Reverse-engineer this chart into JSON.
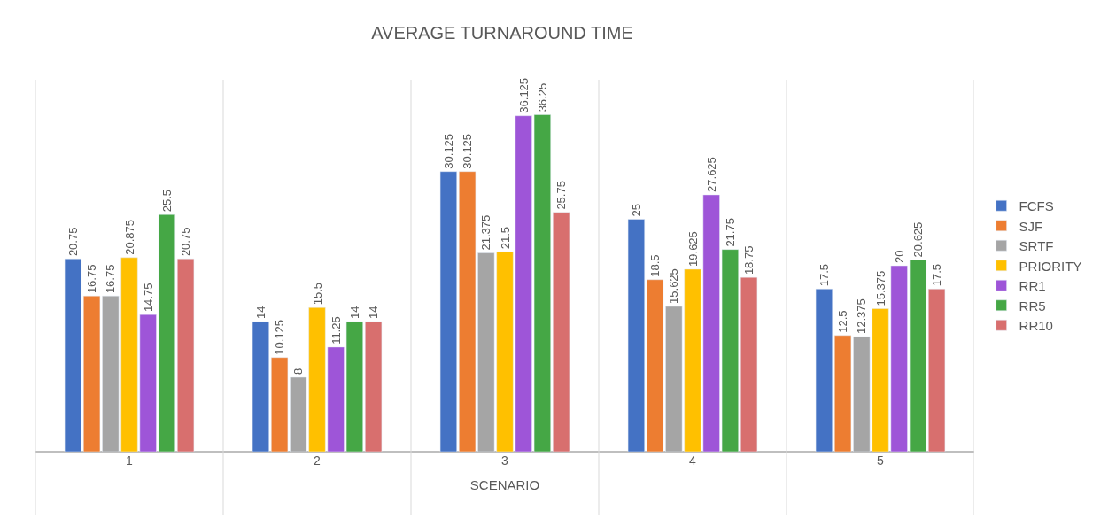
{
  "chart_data": {
    "type": "bar",
    "title": "AVERAGE TURNAROUND TIME",
    "xlabel": "SCENARIO",
    "categories": [
      "1",
      "2",
      "3",
      "4",
      "5"
    ],
    "series": [
      {
        "name": "FCFS",
        "color": "#4472c4",
        "values": [
          20.75,
          14,
          30.125,
          25,
          17.5
        ]
      },
      {
        "name": "SJF",
        "color": "#ed7d31",
        "values": [
          16.75,
          10.125,
          30.125,
          18.5,
          12.5
        ]
      },
      {
        "name": "SRTF",
        "color": "#a5a5a5",
        "values": [
          16.75,
          8,
          21.375,
          15.625,
          12.375
        ]
      },
      {
        "name": "PRIORITY",
        "color": "#ffc000",
        "values": [
          20.875,
          15.5,
          21.5,
          19.625,
          15.375
        ]
      },
      {
        "name": "RR1",
        "color": "#9e55d8",
        "values": [
          14.75,
          11.25,
          36.125,
          27.625,
          20
        ]
      },
      {
        "name": "RR5",
        "color": "#45a745",
        "values": [
          25.5,
          14,
          36.25,
          21.75,
          20.625
        ]
      },
      {
        "name": "RR10",
        "color": "#d86f6e",
        "values": [
          20.75,
          14,
          25.75,
          18.75,
          17.5
        ]
      }
    ],
    "ylim": [
      0,
      40
    ],
    "tick_labels": "x",
    "data_labels": true,
    "legend": "right"
  }
}
